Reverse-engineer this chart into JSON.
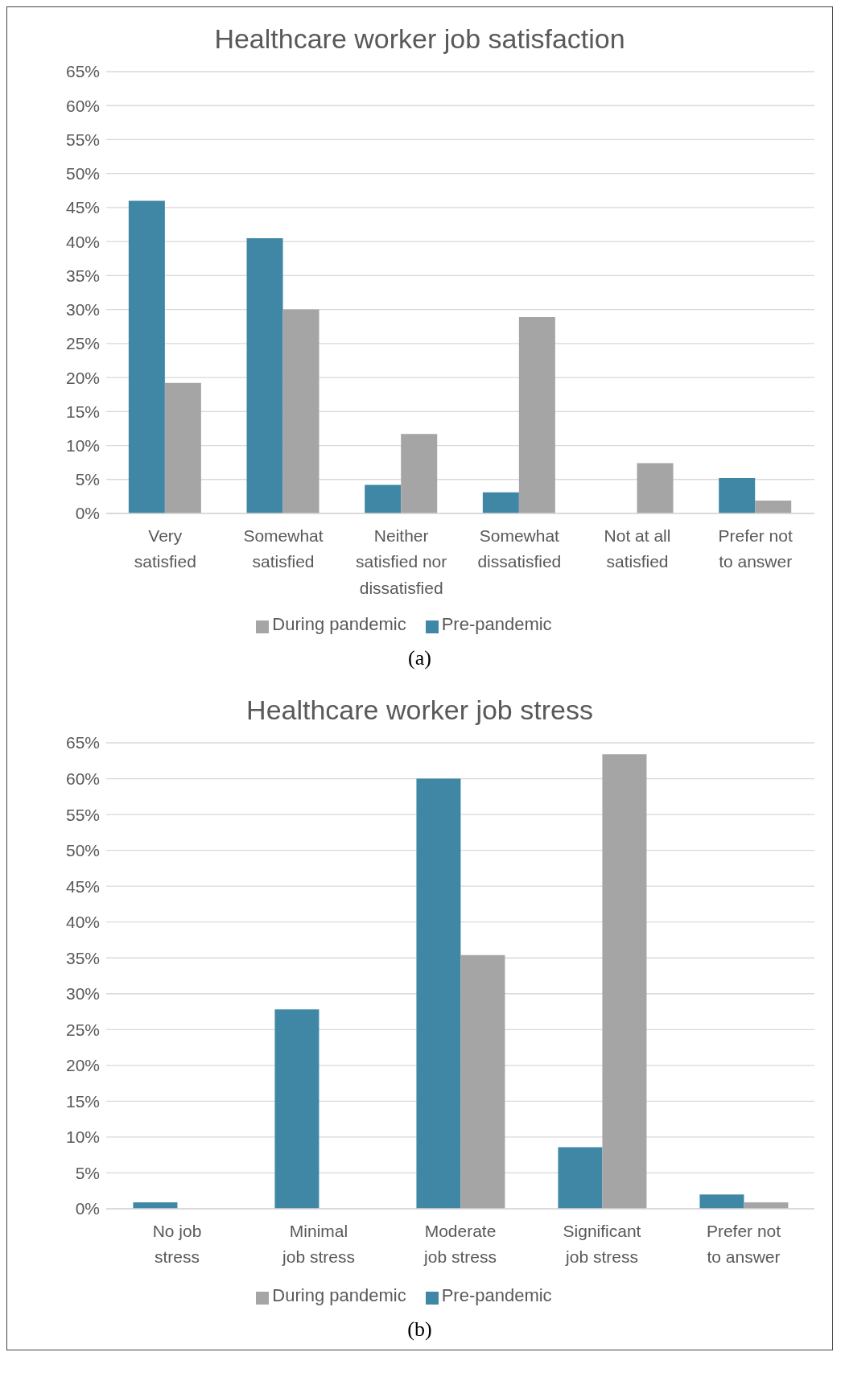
{
  "chart_data": [
    {
      "type": "bar",
      "title": "Healthcare worker job satisfaction",
      "categories": [
        "Very satisfied",
        "Somewhat satisfied",
        "Neither satisfied nor dissatisfied",
        "Somewhat dissatisfied",
        "Not at all satisfied",
        "Prefer not to answer"
      ],
      "series": [
        {
          "name": "Pre-pandemic",
          "color": "#3f87a5",
          "values": [
            46,
            40.5,
            4.2,
            3.1,
            0,
            5.2
          ]
        },
        {
          "name": "During pandemic",
          "color": "#a5a5a5",
          "values": [
            19.2,
            30,
            11.7,
            28.9,
            7.4,
            1.9
          ]
        }
      ],
      "ylim": [
        0,
        65
      ],
      "yticks": [
        {
          "value": 0,
          "label": "0%"
        },
        {
          "value": 5,
          "label": "5%"
        },
        {
          "value": 10,
          "label": "10%"
        },
        {
          "value": 15,
          "label": "15%"
        },
        {
          "value": 20,
          "label": "20%"
        },
        {
          "value": 25,
          "label": "25%"
        },
        {
          "value": 30,
          "label": "30%"
        },
        {
          "value": 35,
          "label": "35%"
        },
        {
          "value": 40,
          "label": "40%"
        },
        {
          "value": 45,
          "label": "45%"
        },
        {
          "value": 50,
          "label": "50%"
        },
        {
          "value": 55,
          "label": "55%"
        },
        {
          "value": 60,
          "label": "60%"
        },
        {
          "value": 65,
          "label": "65%"
        }
      ],
      "grid": "y",
      "legend": "bottom",
      "annotations": [
        "(a)"
      ]
    },
    {
      "type": "bar",
      "title": "Healthcare worker job stress",
      "categories": [
        "No job stress",
        "Minimal job stress",
        "Moderate job stress",
        "Significant job stress",
        "Prefer not to answer"
      ],
      "series": [
        {
          "name": "Pre-pandemic",
          "color": "#3f87a5",
          "values": [
            0.9,
            27.8,
            60,
            8.6,
            2
          ]
        },
        {
          "name": "During pandemic",
          "color": "#a5a5a5",
          "values": [
            0,
            0,
            35.4,
            63.4,
            0.9
          ]
        }
      ],
      "ylim": [
        0,
        65
      ],
      "yticks": [
        {
          "value": 0,
          "label": "0%"
        },
        {
          "value": 5,
          "label": "5%"
        },
        {
          "value": 10,
          "label": "10%"
        },
        {
          "value": 15,
          "label": "15%"
        },
        {
          "value": 20,
          "label": "20%"
        },
        {
          "value": 25,
          "label": "25%"
        },
        {
          "value": 30,
          "label": "30%"
        },
        {
          "value": 35,
          "label": "35%"
        },
        {
          "value": 40,
          "label": "40%"
        },
        {
          "value": 45,
          "label": "45%"
        },
        {
          "value": 50,
          "label": "50%"
        },
        {
          "value": 55,
          "label": "55%"
        },
        {
          "value": 60,
          "label": "60%"
        },
        {
          "value": 65,
          "label": "65%"
        }
      ],
      "grid": "y",
      "legend": "bottom",
      "annotations": [
        "(b)"
      ]
    }
  ]
}
